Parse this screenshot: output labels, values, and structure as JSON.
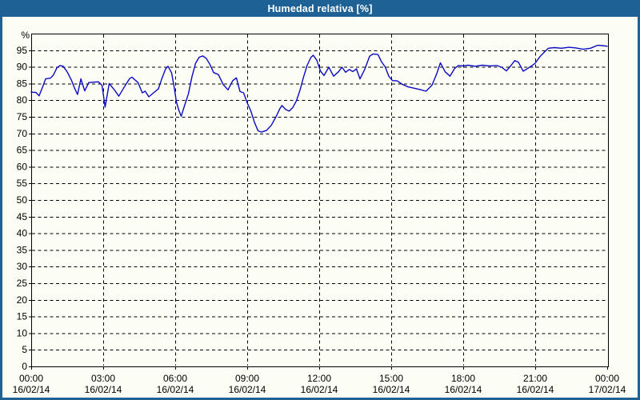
{
  "window": {
    "title": "Humedad relativa [%]"
  },
  "colors": {
    "frame": "#1e6194",
    "title_text": "#ffffff",
    "panel_bg": "#fcfdf5",
    "grid": "#000000",
    "axis_text": "#000000",
    "series_line": "#0a0ac2"
  },
  "chart_data": {
    "type": "line",
    "title": "Humedad relativa [%]",
    "unit_label": "%",
    "grid": "dashed",
    "legend": "none",
    "y_axis": {
      "min": 0,
      "max": 100,
      "tick_step": 5,
      "tick_labels": [
        "0",
        "5",
        "10",
        "15",
        "20",
        "25",
        "30",
        "35",
        "40",
        "45",
        "50",
        "55",
        "60",
        "65",
        "70",
        "75",
        "80",
        "85",
        "90",
        "95"
      ]
    },
    "x_axis": {
      "min_hours": 0,
      "max_hours": 24,
      "tick_step_hours": 3,
      "ticks": [
        {
          "time": "00:00",
          "date": "16/02/14"
        },
        {
          "time": "03:00",
          "date": "16/02/14"
        },
        {
          "time": "06:00",
          "date": "16/02/14"
        },
        {
          "time": "09:00",
          "date": "16/02/14"
        },
        {
          "time": "12:00",
          "date": "16/02/14"
        },
        {
          "time": "15:00",
          "date": "16/02/14"
        },
        {
          "time": "18:00",
          "date": "16/02/14"
        },
        {
          "time": "21:00",
          "date": "16/02/14"
        },
        {
          "time": "00:00",
          "date": "17/02/14"
        }
      ]
    },
    "series": [
      {
        "name": "Humedad relativa",
        "color": "#0a0ac2",
        "x_hours": [
          0,
          0.2,
          0.33,
          0.5,
          0.6,
          0.8,
          0.93,
          1.07,
          1.2,
          1.33,
          1.5,
          1.67,
          1.8,
          1.93,
          2.07,
          2.23,
          2.4,
          2.6,
          2.8,
          2.95,
          3.08,
          3.25,
          3.5,
          3.65,
          3.9,
          4.1,
          4.2,
          4.45,
          4.63,
          4.75,
          4.9,
          5.1,
          5.3,
          5.45,
          5.6,
          5.7,
          5.85,
          5.95,
          6.05,
          6.15,
          6.25,
          6.4,
          6.55,
          6.7,
          6.85,
          7.0,
          7.15,
          7.3,
          7.45,
          7.6,
          7.8,
          8.0,
          8.2,
          8.4,
          8.55,
          8.7,
          8.85,
          9.0,
          9.15,
          9.3,
          9.45,
          9.6,
          9.8,
          10.0,
          10.2,
          10.35,
          10.45,
          10.6,
          10.75,
          10.9,
          11.05,
          11.2,
          11.35,
          11.5,
          11.65,
          11.75,
          11.9,
          12.05,
          12.2,
          12.4,
          12.6,
          12.8,
          12.95,
          13.1,
          13.25,
          13.4,
          13.55,
          13.7,
          13.9,
          14.1,
          14.25,
          14.45,
          14.6,
          14.75,
          14.9,
          15.05,
          15.25,
          15.45,
          15.7,
          16.0,
          16.25,
          16.45,
          16.7,
          16.9,
          17.05,
          17.25,
          17.45,
          17.65,
          17.8,
          18.0,
          18.2,
          18.5,
          18.8,
          19.1,
          19.4,
          19.6,
          19.8,
          20.0,
          20.15,
          20.3,
          20.5,
          20.7,
          20.85,
          21.0,
          21.2,
          21.4,
          21.55,
          21.8,
          22.1,
          22.4,
          22.7,
          23.0,
          23.3,
          23.6,
          23.8,
          24.0
        ],
        "values": [
          82.4,
          82.3,
          81.3,
          84.4,
          86.4,
          86.6,
          87.6,
          89.7,
          90.4,
          90.2,
          88.5,
          86.1,
          83.7,
          81.7,
          86.4,
          82.8,
          85.3,
          85.4,
          85.5,
          84.5,
          77.9,
          85.0,
          82.8,
          81.2,
          84.2,
          86.5,
          86.9,
          85.3,
          82.2,
          82.7,
          81.0,
          82.2,
          83.4,
          86.6,
          89.4,
          90.2,
          88.2,
          84.2,
          79.5,
          77.0,
          75.2,
          78.6,
          81.9,
          87.1,
          91.1,
          92.9,
          93.3,
          92.5,
          90.7,
          88.3,
          87.7,
          84.7,
          83.1,
          85.9,
          86.7,
          82.6,
          82.2,
          79.2,
          76.8,
          73.4,
          70.8,
          70.4,
          70.9,
          72.4,
          75.0,
          77.3,
          78.4,
          77.2,
          76.7,
          77.8,
          79.8,
          83.0,
          87.0,
          90.5,
          92.8,
          93.5,
          92.0,
          88.8,
          87.4,
          89.9,
          87.2,
          88.5,
          89.9,
          88.4,
          89.2,
          88.6,
          89.4,
          86.4,
          89.3,
          93.2,
          93.9,
          93.7,
          91.5,
          90.0,
          87.2,
          85.9,
          85.8,
          84.8,
          84.0,
          83.5,
          83.1,
          82.7,
          84.5,
          88.0,
          91.2,
          88.5,
          87.2,
          89.6,
          90.4,
          90.3,
          90.5,
          90.2,
          90.5,
          90.3,
          90.4,
          89.9,
          88.8,
          90.5,
          91.9,
          91.4,
          88.7,
          89.6,
          90.3,
          91.1,
          93.1,
          94.6,
          95.6,
          95.8,
          95.6,
          95.9,
          95.7,
          95.3,
          95.6,
          96.5,
          96.4,
          96.2
        ]
      }
    ]
  }
}
